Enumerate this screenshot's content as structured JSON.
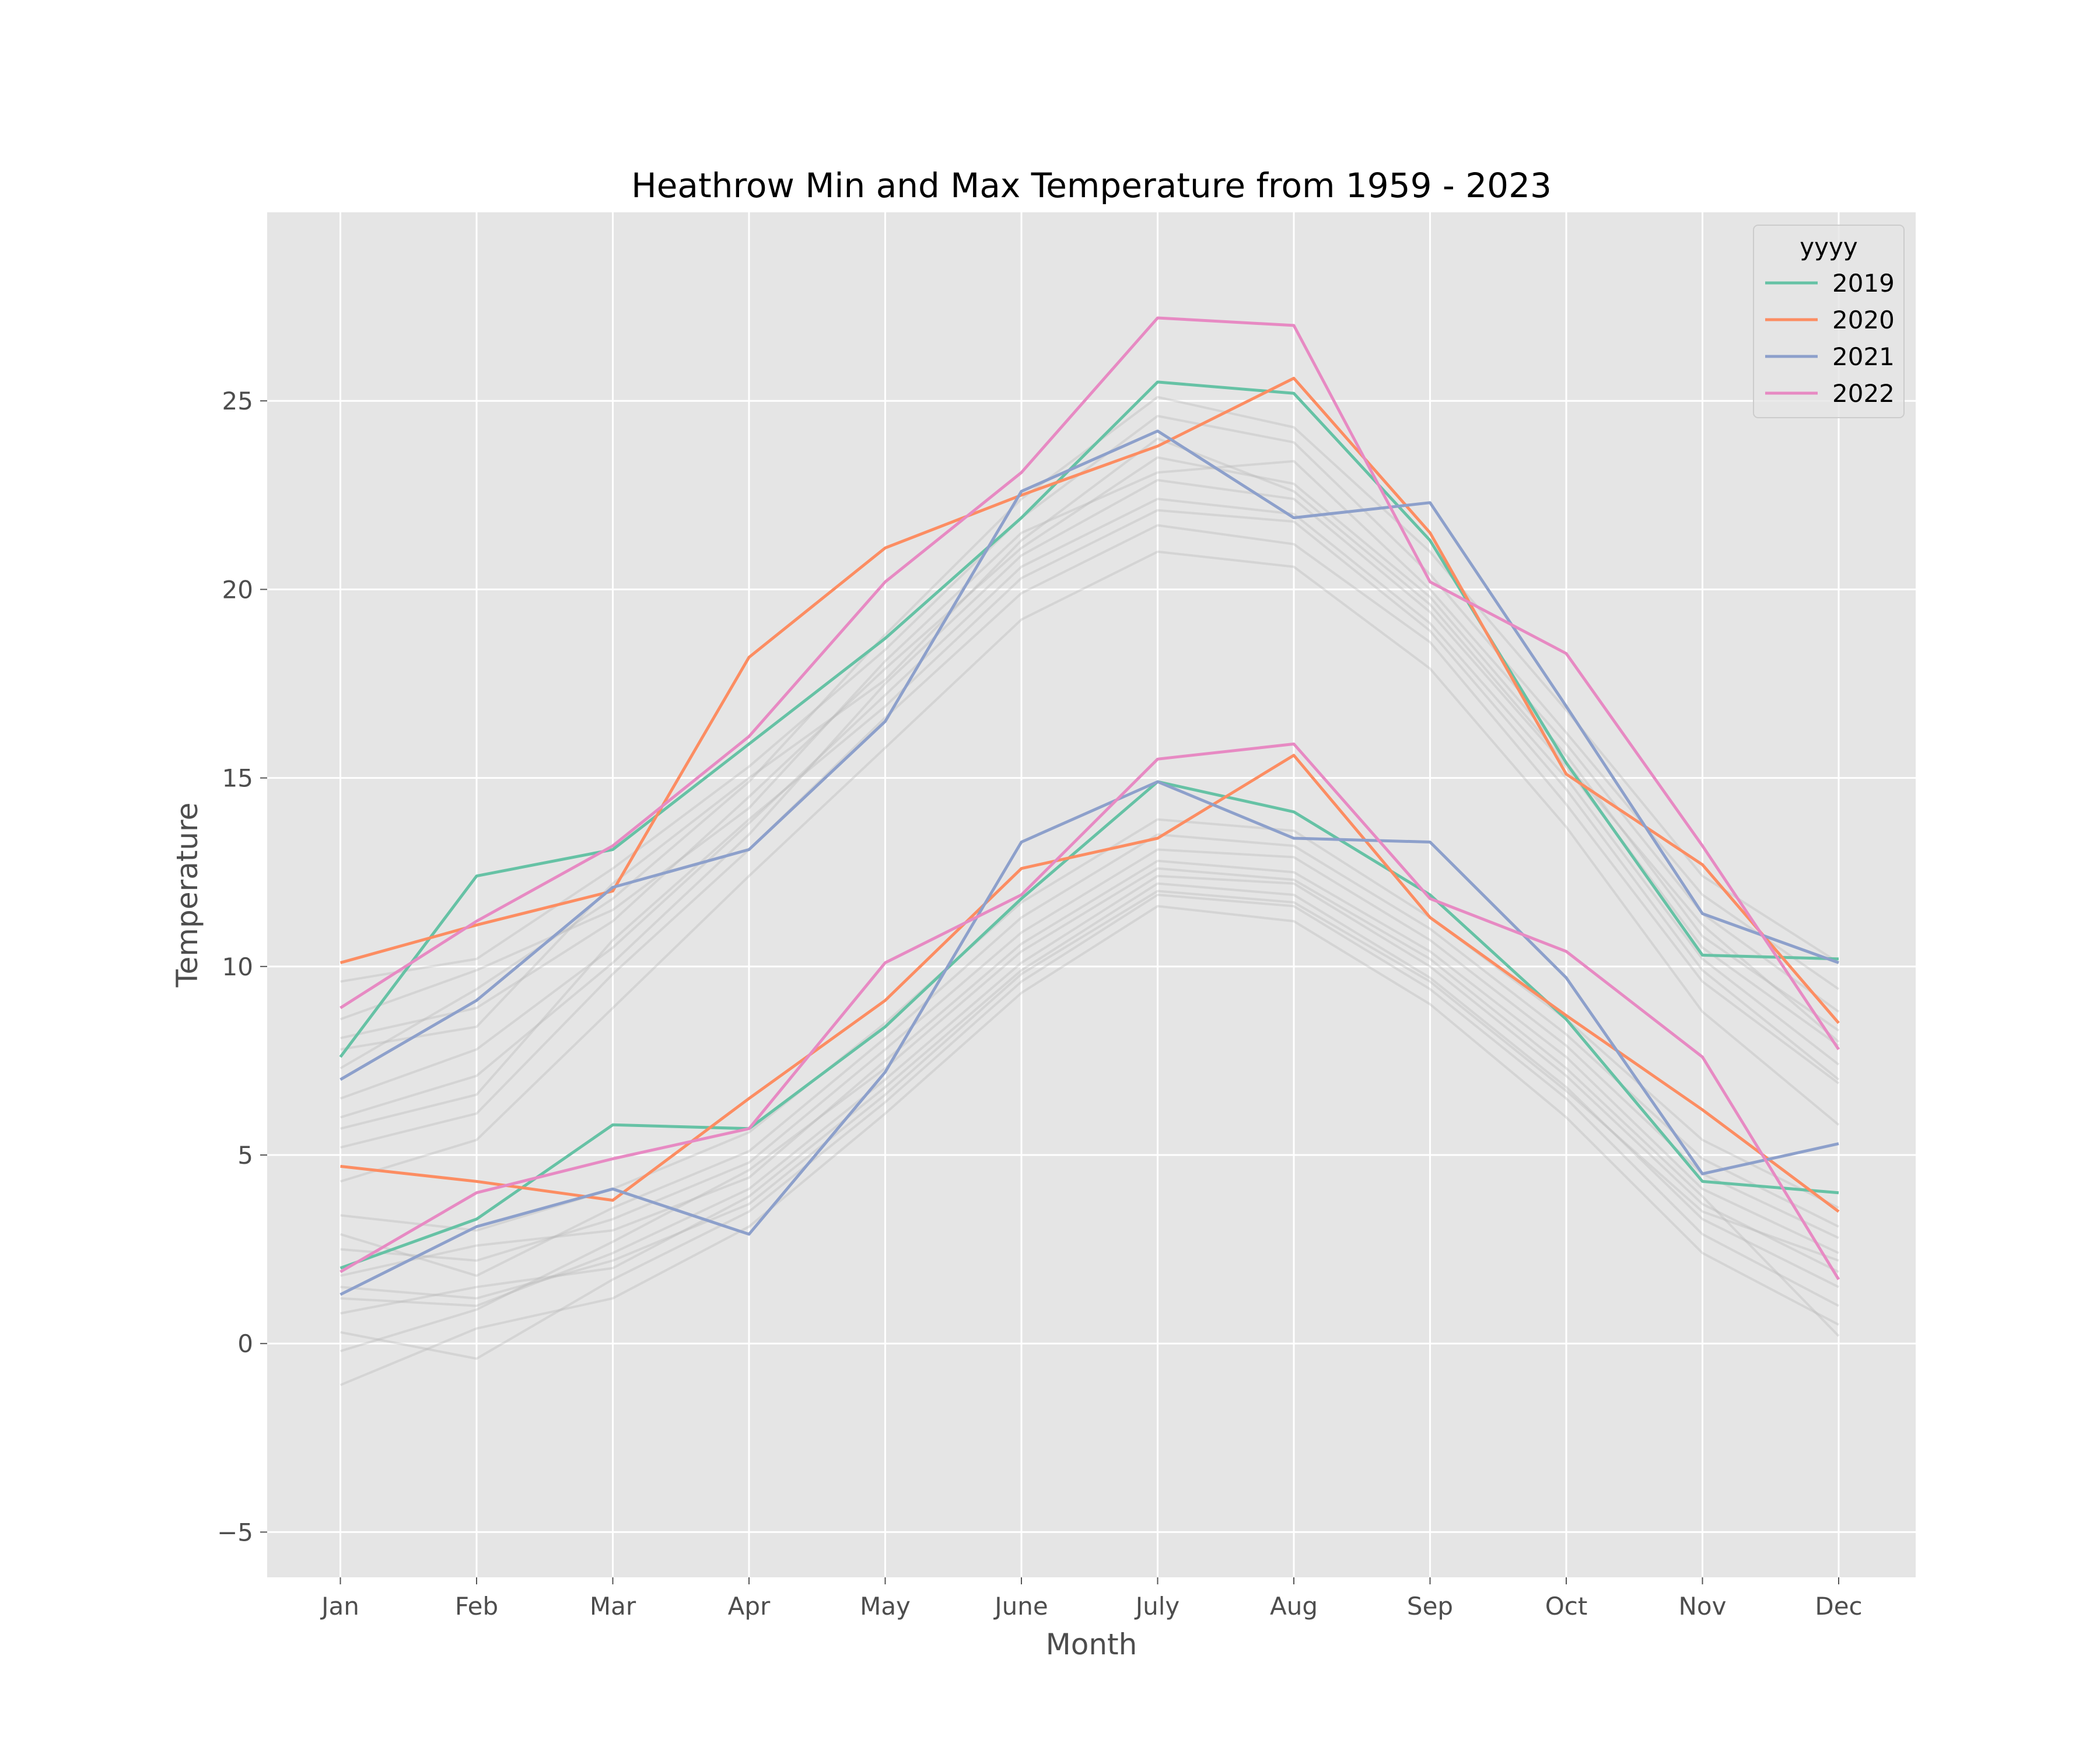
{
  "chart_data": {
    "type": "line",
    "title": "Heathrow Min and Max Temperature from 1959 - 2023",
    "xlabel": "Month",
    "ylabel": "Temperature",
    "categories": [
      "Jan",
      "Feb",
      "Mar",
      "Apr",
      "May",
      "June",
      "July",
      "Aug",
      "Sep",
      "Oct",
      "Nov",
      "Dec"
    ],
    "ylim": [
      -6.2,
      30
    ],
    "yticks": [
      -5,
      0,
      5,
      10,
      15,
      20,
      25
    ],
    "ytick_labels": [
      "−5",
      "0",
      "5",
      "10",
      "15",
      "20",
      "25"
    ],
    "grid": true,
    "legend": {
      "title": "yyyy",
      "placement": "top-right"
    },
    "series": [
      {
        "name": "2019",
        "color": "#66c2a5",
        "kind": "max",
        "values": [
          7.6,
          12.4,
          13.1,
          15.9,
          18.7,
          21.9,
          25.5,
          25.2,
          21.3,
          15.4,
          10.3,
          10.2
        ]
      },
      {
        "name": "2019",
        "color": "#66c2a5",
        "kind": "min",
        "values": [
          2.0,
          3.3,
          5.8,
          5.7,
          8.4,
          11.8,
          14.9,
          14.1,
          11.9,
          8.6,
          4.3,
          4.0
        ]
      },
      {
        "name": "2020",
        "color": "#fc8d62",
        "kind": "max",
        "values": [
          10.1,
          11.1,
          12.0,
          18.2,
          21.1,
          22.5,
          23.8,
          25.6,
          21.5,
          15.1,
          12.7,
          8.5
        ]
      },
      {
        "name": "2020",
        "color": "#fc8d62",
        "kind": "min",
        "values": [
          4.7,
          4.3,
          3.8,
          6.5,
          9.1,
          12.6,
          13.4,
          15.6,
          11.3,
          8.7,
          6.2,
          3.5
        ]
      },
      {
        "name": "2021",
        "color": "#8da0cb",
        "kind": "max",
        "values": [
          7.0,
          9.1,
          12.1,
          13.1,
          16.5,
          22.6,
          24.2,
          21.9,
          22.3,
          16.9,
          11.4,
          10.1
        ]
      },
      {
        "name": "2021",
        "color": "#8da0cb",
        "kind": "min",
        "values": [
          1.3,
          3.1,
          4.1,
          2.9,
          7.2,
          13.3,
          14.9,
          13.4,
          13.3,
          9.7,
          4.5,
          5.3
        ]
      },
      {
        "name": "2022",
        "color": "#e78ac3",
        "kind": "max",
        "values": [
          8.9,
          11.2,
          13.2,
          16.1,
          20.2,
          23.1,
          27.2,
          27.0,
          20.2,
          18.3,
          13.2,
          7.8
        ]
      },
      {
        "name": "2022",
        "color": "#e78ac3",
        "kind": "min",
        "values": [
          1.9,
          4.0,
          4.9,
          5.7,
          10.1,
          11.9,
          15.5,
          15.9,
          11.8,
          10.4,
          7.6,
          1.7
        ]
      }
    ],
    "background_series_color": "#b4b4b4",
    "background_series": [
      {
        "kind": "max",
        "values": [
          6.5,
          7.8,
          10.5,
          13.8,
          17.2,
          20.6,
          22.4,
          22.0,
          19.1,
          15.0,
          10.2,
          7.4
        ]
      },
      {
        "kind": "max",
        "values": [
          8.1,
          8.9,
          11.2,
          14.5,
          17.9,
          21.1,
          23.5,
          22.8,
          19.8,
          15.6,
          10.8,
          8.3
        ]
      },
      {
        "kind": "max",
        "values": [
          5.2,
          6.1,
          9.8,
          13.1,
          16.6,
          19.9,
          21.7,
          21.2,
          18.6,
          14.3,
          9.6,
          6.9
        ]
      },
      {
        "kind": "max",
        "values": [
          9.6,
          10.2,
          12.6,
          15.3,
          18.4,
          21.9,
          24.6,
          23.9,
          20.4,
          16.2,
          11.9,
          9.4
        ]
      },
      {
        "kind": "max",
        "values": [
          4.3,
          5.4,
          8.9,
          12.4,
          15.8,
          19.2,
          21.0,
          20.6,
          17.9,
          13.7,
          8.8,
          5.8
        ]
      },
      {
        "kind": "max",
        "values": [
          7.3,
          9.4,
          11.8,
          14.9,
          18.8,
          22.4,
          25.1,
          24.3,
          21.0,
          16.8,
          12.4,
          10.1
        ]
      },
      {
        "kind": "max",
        "values": [
          6.0,
          7.1,
          10.1,
          13.5,
          17.5,
          20.9,
          22.9,
          22.4,
          19.4,
          15.3,
          10.5,
          7.9
        ]
      },
      {
        "kind": "max",
        "values": [
          8.6,
          9.9,
          11.5,
          14.2,
          18.1,
          21.5,
          23.1,
          23.4,
          20.0,
          15.9,
          11.4,
          8.8
        ]
      },
      {
        "kind": "max",
        "values": [
          5.7,
          6.6,
          10.7,
          13.9,
          16.9,
          20.3,
          22.1,
          21.8,
          18.9,
          14.7,
          9.9,
          7.0
        ]
      },
      {
        "kind": "max",
        "values": [
          7.8,
          8.4,
          12.2,
          15.0,
          17.6,
          21.3,
          24.0,
          22.6,
          19.6,
          15.4,
          11.1,
          8.0
        ]
      },
      {
        "kind": "min",
        "values": [
          1.2,
          1.0,
          2.4,
          4.1,
          7.0,
          10.1,
          12.4,
          12.2,
          10.0,
          7.1,
          3.7,
          1.9
        ]
      },
      {
        "kind": "min",
        "values": [
          2.5,
          2.2,
          3.3,
          4.8,
          7.8,
          10.9,
          13.1,
          12.9,
          10.7,
          7.9,
          4.5,
          2.8
        ]
      },
      {
        "kind": "min",
        "values": [
          0.3,
          -0.4,
          1.7,
          3.5,
          6.4,
          9.6,
          11.9,
          11.6,
          9.4,
          6.5,
          2.9,
          1.0
        ]
      },
      {
        "kind": "min",
        "values": [
          3.4,
          3.0,
          4.1,
          5.6,
          8.5,
          11.7,
          13.9,
          13.6,
          11.3,
          8.6,
          5.4,
          3.6
        ]
      },
      {
        "kind": "min",
        "values": [
          -1.1,
          0.4,
          1.2,
          3.1,
          6.1,
          9.3,
          11.6,
          11.2,
          9.0,
          6.0,
          2.4,
          0.5
        ]
      },
      {
        "kind": "min",
        "values": [
          1.8,
          2.6,
          3.0,
          4.4,
          7.5,
          10.6,
          12.8,
          12.5,
          10.4,
          7.6,
          4.1,
          2.4
        ]
      },
      {
        "kind": "min",
        "values": [
          0.8,
          1.5,
          2.0,
          3.9,
          6.8,
          9.9,
          12.2,
          11.9,
          9.7,
          6.8,
          3.3,
          1.5
        ]
      },
      {
        "kind": "min",
        "values": [
          2.9,
          1.8,
          3.6,
          5.1,
          8.1,
          11.3,
          13.5,
          13.2,
          11.0,
          8.2,
          4.9,
          3.1
        ]
      },
      {
        "kind": "min",
        "values": [
          -0.2,
          0.9,
          2.7,
          4.6,
          7.3,
          10.4,
          12.6,
          12.3,
          10.2,
          7.3,
          3.9,
          0.2
        ]
      },
      {
        "kind": "min",
        "values": [
          1.5,
          1.2,
          2.2,
          3.7,
          6.6,
          9.8,
          12.0,
          11.7,
          9.6,
          6.7,
          3.5,
          2.2
        ]
      }
    ]
  }
}
